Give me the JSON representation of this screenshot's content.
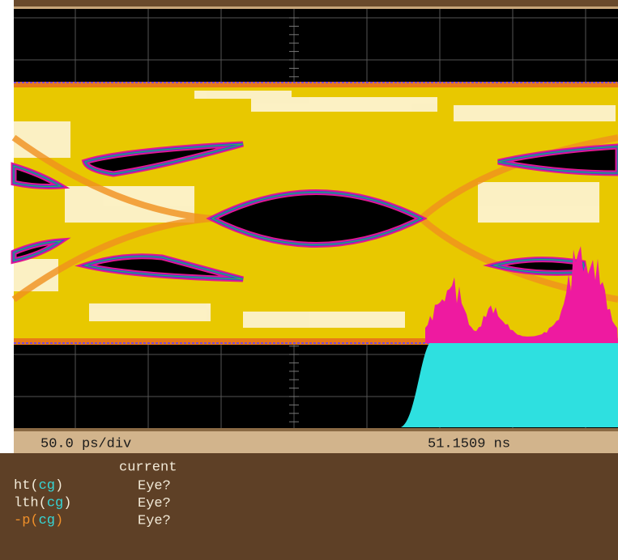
{
  "status_bar": {
    "timebase": "50.0 ps/div",
    "position": "51.1509 ns"
  },
  "measurements": {
    "column_header": "current",
    "rows": [
      {
        "prefix": "ht(",
        "tag": "cg",
        "suffix": ")",
        "value": "Eye?"
      },
      {
        "prefix": "lth(",
        "tag": "cg",
        "suffix": ")",
        "value": "Eye?"
      },
      {
        "prefix": "-p(",
        "tag": "cg",
        "suffix": ")",
        "value": "Eye?"
      }
    ]
  }
}
